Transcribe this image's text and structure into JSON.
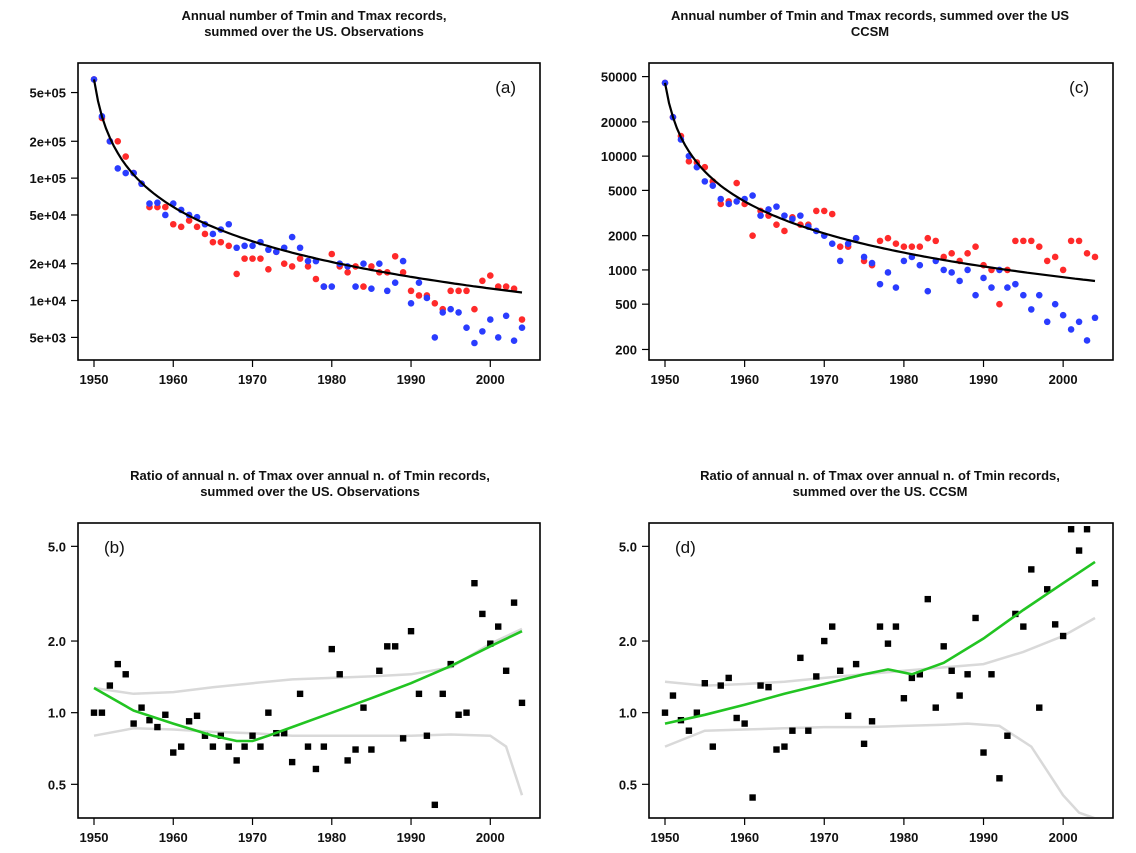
{
  "figure": {
    "panel_titles": {
      "a": [
        "Annual number of Tmin and Tmax records,",
        "summed over the US. Observations"
      ],
      "c": [
        "Annual number of Tmin and Tmax records, summed over the US",
        "CCSM"
      ],
      "b": [
        "Ratio of annual n. of Tmax over annual n. of Tmin records,",
        "summed over the US. Observations"
      ],
      "d": [
        "Ratio of annual n. of Tmax over annual n. of Tmin records,",
        "summed over the US. CCSM"
      ]
    }
  },
  "colors": {
    "tmax": "#ff2a2a",
    "tmin": "#2a3cff",
    "theory": "#000000",
    "smooth": "#22c422",
    "band": "#d9d9d9",
    "points": "#000000"
  },
  "chart_data": [
    {
      "id": "a",
      "type": "scatter",
      "panel_label": "(a)",
      "title": "Annual number of Tmin and Tmax records, summed over the US. Observations",
      "y_scale": "log",
      "xlim": [
        1950,
        2004
      ],
      "ylim": [
        3800,
        750000
      ],
      "x_ticks": [
        1950,
        1960,
        1970,
        1980,
        1990,
        2000
      ],
      "y_ticks": [
        5000,
        10000,
        20000,
        50000,
        100000,
        200000,
        500000
      ],
      "y_tick_labels": [
        "5e+03",
        "1e+04",
        "2e+04",
        "5e+04",
        "1e+05",
        "2e+05",
        "5e+05"
      ],
      "theory_curve": {
        "base_year": 1950,
        "y0": 640000,
        "exponent": 1
      },
      "series": [
        {
          "kind": "tmax",
          "x": [
            1950,
            1951,
            1952,
            1953,
            1954,
            1955,
            1956,
            1957,
            1958,
            1959,
            1960,
            1961,
            1962,
            1963,
            1964,
            1965,
            1966,
            1967,
            1968,
            1969,
            1970,
            1971,
            1972,
            1973,
            1974,
            1975,
            1976,
            1977,
            1978,
            1979,
            1980,
            1981,
            1982,
            1983,
            1984,
            1985,
            1986,
            1987,
            1988,
            1989,
            1990,
            1991,
            1992,
            1993,
            1994,
            1995,
            1996,
            1997,
            1998,
            1999,
            2000,
            2001,
            2002,
            2003,
            2004
          ],
          "values": [
            640000,
            310000,
            200000,
            200000,
            150000,
            110000,
            90000,
            58000,
            58000,
            58000,
            42000,
            40000,
            45000,
            40000,
            35000,
            30000,
            30000,
            28000,
            16500,
            22000,
            22000,
            22000,
            18000,
            25000,
            20000,
            19000,
            22000,
            19000,
            15000,
            13000,
            24000,
            19000,
            17000,
            19000,
            13000,
            19000,
            17000,
            17000,
            23000,
            17000,
            12000,
            11000,
            11000,
            9500,
            8500,
            12000,
            12000,
            12000,
            8500,
            14500,
            16000,
            13000,
            13000,
            12500,
            7000
          ]
        },
        {
          "kind": "tmin",
          "x": [
            1950,
            1951,
            1952,
            1953,
            1954,
            1955,
            1956,
            1957,
            1958,
            1959,
            1960,
            1961,
            1962,
            1963,
            1964,
            1965,
            1966,
            1967,
            1968,
            1969,
            1970,
            1971,
            1972,
            1973,
            1974,
            1975,
            1976,
            1977,
            1978,
            1979,
            1980,
            1981,
            1982,
            1983,
            1984,
            1985,
            1986,
            1987,
            1988,
            1989,
            1990,
            1991,
            1992,
            1993,
            1994,
            1995,
            1996,
            1997,
            1998,
            1999,
            2000,
            2001,
            2002,
            2003,
            2004
          ],
          "values": [
            640000,
            320000,
            200000,
            120000,
            110000,
            110000,
            90000,
            62000,
            63000,
            50000,
            62000,
            55000,
            50000,
            48000,
            42000,
            35000,
            38000,
            42000,
            27000,
            28000,
            28000,
            30000,
            26000,
            25000,
            27000,
            33000,
            27000,
            21000,
            21000,
            13000,
            13000,
            20000,
            19000,
            13000,
            20000,
            12500,
            20000,
            12000,
            14000,
            21000,
            9500,
            14000,
            10500,
            5000,
            8000,
            8500,
            8000,
            6000,
            4500,
            5600,
            7000,
            5000,
            7500,
            4700,
            6000
          ]
        }
      ]
    },
    {
      "id": "c",
      "type": "scatter",
      "panel_label": "(c)",
      "title": "Annual number of Tmin and Tmax records, summed over the US CCSM",
      "y_scale": "log",
      "xlim": [
        1950,
        2004
      ],
      "ylim": [
        190,
        56000
      ],
      "x_ticks": [
        1950,
        1960,
        1970,
        1980,
        1990,
        2000
      ],
      "y_ticks": [
        200,
        500,
        1000,
        2000,
        5000,
        10000,
        20000,
        50000
      ],
      "y_tick_labels": [
        "200",
        "500",
        "1000",
        "2000",
        "5000",
        "10000",
        "20000",
        "50000"
      ],
      "theory_curve": {
        "base_year": 1950,
        "y0": 44000,
        "exponent": 1
      },
      "series": [
        {
          "kind": "tmax",
          "x": [
            1950,
            1951,
            1952,
            1953,
            1954,
            1955,
            1956,
            1957,
            1958,
            1959,
            1960,
            1961,
            1962,
            1963,
            1964,
            1965,
            1966,
            1967,
            1968,
            1969,
            1970,
            1971,
            1972,
            1973,
            1974,
            1975,
            1976,
            1977,
            1978,
            1979,
            1980,
            1981,
            1982,
            1983,
            1984,
            1985,
            1986,
            1987,
            1988,
            1989,
            1990,
            1991,
            1992,
            1993,
            1994,
            1995,
            1996,
            1997,
            1998,
            1999,
            2000,
            2001,
            2002,
            2003,
            2004
          ],
          "values": [
            44000,
            22000,
            15000,
            9000,
            8800,
            8000,
            6000,
            3800,
            4000,
            5800,
            3800,
            2000,
            3300,
            3000,
            2500,
            2200,
            2900,
            2500,
            2500,
            3300,
            3300,
            3100,
            1600,
            1600,
            1900,
            1200,
            1100,
            1800,
            1900,
            1700,
            1600,
            1600,
            1600,
            1900,
            1800,
            1300,
            1400,
            1200,
            1400,
            1600,
            1100,
            1000,
            500,
            1000,
            1800,
            1800,
            1800,
            1600,
            1200,
            1300,
            1000,
            1800,
            1800,
            1400,
            1300
          ]
        },
        {
          "kind": "tmin",
          "x": [
            1950,
            1951,
            1952,
            1953,
            1954,
            1955,
            1956,
            1957,
            1958,
            1959,
            1960,
            1961,
            1962,
            1963,
            1964,
            1965,
            1966,
            1967,
            1968,
            1969,
            1970,
            1971,
            1972,
            1973,
            1974,
            1975,
            1976,
            1977,
            1978,
            1979,
            1980,
            1981,
            1982,
            1983,
            1984,
            1985,
            1986,
            1987,
            1988,
            1989,
            1990,
            1991,
            1992,
            1993,
            1994,
            1995,
            1996,
            1997,
            1998,
            1999,
            2000,
            2001,
            2002,
            2003,
            2004
          ],
          "values": [
            44000,
            22000,
            14000,
            10000,
            8000,
            6000,
            5500,
            4200,
            3800,
            4000,
            4200,
            4500,
            3000,
            3400,
            3600,
            3000,
            2800,
            3000,
            2400,
            2200,
            2000,
            1700,
            1200,
            1700,
            1900,
            1300,
            1150,
            750,
            950,
            700,
            1200,
            1300,
            1100,
            650,
            1200,
            1000,
            950,
            800,
            1000,
            600,
            850,
            700,
            1000,
            700,
            750,
            600,
            450,
            600,
            350,
            500,
            400,
            300,
            350,
            240,
            380
          ]
        }
      ]
    },
    {
      "id": "b",
      "type": "scatter",
      "panel_label": "(b)",
      "title": "Ratio of annual n. of Tmax over annual n. of Tmin records, summed over the US. Observations",
      "y_scale": "log",
      "xlim": [
        1950,
        2004
      ],
      "ylim": [
        0.39,
        5.8
      ],
      "x_ticks": [
        1950,
        1960,
        1970,
        1980,
        1990,
        2000
      ],
      "y_ticks": [
        0.5,
        1.0,
        2.0,
        5.0
      ],
      "y_tick_labels": [
        "0.5",
        "1.0",
        "2.0",
        "5.0"
      ],
      "points": {
        "x": [
          1950,
          1951,
          1952,
          1953,
          1954,
          1955,
          1956,
          1957,
          1958,
          1959,
          1960,
          1961,
          1962,
          1963,
          1964,
          1965,
          1966,
          1967,
          1968,
          1969,
          1970,
          1971,
          1972,
          1973,
          1974,
          1975,
          1976,
          1977,
          1978,
          1979,
          1980,
          1981,
          1982,
          1983,
          1984,
          1985,
          1986,
          1987,
          1988,
          1989,
          1990,
          1991,
          1992,
          1993,
          1994,
          1995,
          1996,
          1997,
          1998,
          1999,
          2000,
          2001,
          2002,
          2003,
          2004
        ],
        "values": [
          1.0,
          1.0,
          1.3,
          1.6,
          1.45,
          0.9,
          1.05,
          0.93,
          0.87,
          0.98,
          0.68,
          0.72,
          0.92,
          0.97,
          0.8,
          0.72,
          0.8,
          0.72,
          0.63,
          0.72,
          0.8,
          0.72,
          1.0,
          0.82,
          0.82,
          0.62,
          1.2,
          0.72,
          0.58,
          0.72,
          1.85,
          1.45,
          0.63,
          0.7,
          1.05,
          0.7,
          1.5,
          1.9,
          1.9,
          0.78,
          2.2,
          1.2,
          0.8,
          0.41,
          1.2,
          1.6,
          0.98,
          1.0,
          3.5,
          2.6,
          1.95,
          2.3,
          1.5,
          2.9,
          1.1
        ]
      },
      "smooth": {
        "x": [
          1950,
          1955,
          1960,
          1965,
          1968,
          1970,
          1972,
          1975,
          1980,
          1985,
          1990,
          1995,
          2000,
          2004
        ],
        "values": [
          1.27,
          1.02,
          0.9,
          0.8,
          0.76,
          0.76,
          0.8,
          0.87,
          1.0,
          1.15,
          1.33,
          1.57,
          1.9,
          2.2
        ]
      },
      "band_upper": {
        "x": [
          1950,
          1955,
          1960,
          1965,
          1970,
          1975,
          1980,
          1985,
          1990,
          1995,
          2000,
          2004
        ],
        "values": [
          1.27,
          1.2,
          1.22,
          1.28,
          1.33,
          1.38,
          1.4,
          1.42,
          1.45,
          1.55,
          1.95,
          2.25
        ]
      },
      "band_lower": {
        "x": [
          1950,
          1955,
          1960,
          1965,
          1970,
          1975,
          1980,
          1985,
          1990,
          1995,
          2000,
          2002,
          2004
        ],
        "values": [
          0.8,
          0.86,
          0.85,
          0.83,
          0.82,
          0.8,
          0.8,
          0.8,
          0.8,
          0.81,
          0.8,
          0.72,
          0.45
        ]
      }
    },
    {
      "id": "d",
      "type": "scatter",
      "panel_label": "(d)",
      "title": "Ratio of annual n. of Tmax over annual n. of Tmin records, summed over the US. CCSM",
      "y_scale": "log",
      "xlim": [
        1950,
        2004
      ],
      "ylim": [
        0.39,
        5.8
      ],
      "x_ticks": [
        1950,
        1960,
        1970,
        1980,
        1990,
        2000
      ],
      "y_ticks": [
        0.5,
        1.0,
        2.0,
        5.0
      ],
      "y_tick_labels": [
        "0.5",
        "1.0",
        "2.0",
        "5.0"
      ],
      "points": {
        "x": [
          1950,
          1951,
          1952,
          1953,
          1954,
          1955,
          1956,
          1957,
          1958,
          1959,
          1960,
          1961,
          1962,
          1963,
          1964,
          1965,
          1966,
          1967,
          1968,
          1969,
          1970,
          1971,
          1972,
          1973,
          1974,
          1975,
          1976,
          1977,
          1978,
          1979,
          1980,
          1981,
          1982,
          1983,
          1984,
          1985,
          1986,
          1987,
          1988,
          1989,
          1990,
          1991,
          1992,
          1993,
          1994,
          1995,
          1996,
          1997,
          1998,
          1999,
          2000,
          2001,
          2002,
          2003,
          2004
        ],
        "values": [
          1.0,
          1.18,
          0.93,
          0.84,
          1.0,
          1.33,
          0.72,
          1.3,
          1.4,
          0.95,
          0.9,
          0.44,
          1.3,
          1.28,
          0.7,
          0.72,
          0.84,
          1.7,
          0.84,
          1.42,
          2.0,
          2.3,
          1.5,
          0.97,
          1.6,
          0.74,
          0.92,
          2.3,
          1.95,
          2.3,
          1.15,
          1.4,
          1.45,
          3.0,
          1.05,
          1.9,
          1.5,
          1.18,
          1.45,
          2.5,
          0.68,
          1.45,
          0.53,
          0.8,
          2.6,
          2.3,
          4.0,
          1.05,
          3.3,
          2.35,
          2.1,
          5.9,
          4.8,
          5.9,
          3.5
        ]
      },
      "smooth": {
        "x": [
          1950,
          1955,
          1960,
          1965,
          1970,
          1975,
          1978,
          1981,
          1985,
          1990,
          1995,
          2000,
          2004
        ],
        "values": [
          0.9,
          0.98,
          1.08,
          1.2,
          1.32,
          1.45,
          1.52,
          1.45,
          1.62,
          2.05,
          2.7,
          3.5,
          4.3
        ]
      },
      "band_upper": {
        "x": [
          1950,
          1955,
          1960,
          1965,
          1970,
          1975,
          1980,
          1985,
          1990,
          1995,
          2000,
          2004
        ],
        "values": [
          1.35,
          1.3,
          1.32,
          1.35,
          1.4,
          1.45,
          1.5,
          1.55,
          1.6,
          1.8,
          2.1,
          2.5
        ]
      },
      "band_lower": {
        "x": [
          1950,
          1955,
          1960,
          1965,
          1970,
          1975,
          1980,
          1985,
          1988,
          1992,
          1996,
          2000,
          2002,
          2004
        ],
        "values": [
          0.72,
          0.84,
          0.85,
          0.86,
          0.87,
          0.87,
          0.88,
          0.89,
          0.9,
          0.88,
          0.72,
          0.45,
          0.38,
          0.36
        ]
      }
    }
  ]
}
